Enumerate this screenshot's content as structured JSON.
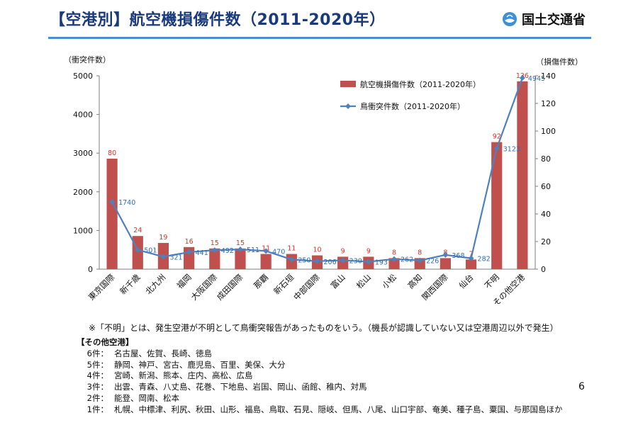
{
  "header": {
    "title": "【空港別】航空機損傷件数（2011-2020年）",
    "logo_text": "国土交通省",
    "logo_icon": "mlit-drop-logo-icon"
  },
  "chart_data": {
    "type": "bar+line",
    "categories": [
      "東京国際",
      "新千歳",
      "北九州",
      "福岡",
      "大阪国際",
      "成田国際",
      "那覇",
      "新石垣",
      "中部国際",
      "富山",
      "松山",
      "小松",
      "高知",
      "関西国際",
      "仙台",
      "不明",
      "その他空港"
    ],
    "series": [
      {
        "name": "航空機損傷件数（2011-2020年）",
        "type": "bar",
        "axis": "right",
        "color": "#c0504d",
        "values": [
          80,
          24,
          19,
          16,
          15,
          15,
          11,
          11,
          10,
          9,
          9,
          8,
          8,
          8,
          7,
          92,
          136
        ]
      },
      {
        "name": "鳥衝突件数（2011-2020年）",
        "type": "line",
        "axis": "left",
        "color": "#4f81bd",
        "values": [
          1740,
          501,
          321,
          441,
          492,
          511,
          470,
          250,
          206,
          230,
          193,
          262,
          226,
          368,
          282,
          3123,
          4945
        ]
      }
    ],
    "y_left": {
      "label": "（衝突件数）",
      "min": 0,
      "max": 5000,
      "ticks": [
        "0",
        "1000",
        "2000",
        "3000",
        "4000",
        "5000"
      ]
    },
    "y_right": {
      "label": "（損傷件数）",
      "min": 0,
      "max": 140,
      "ticks": [
        "0",
        "20",
        "40",
        "60",
        "80",
        "100",
        "120",
        "140"
      ]
    },
    "legend_position": "top-right",
    "grid": false
  },
  "note": "※「不明」とは、発生空港が不明として鳥衝突報告があったものをいう。（機長が認識していない又は空港周辺以外で発生）",
  "others": {
    "heading": "【その他空港】",
    "rows": [
      {
        "label": "6件：",
        "text": "名古屋、佐賀、長崎、徳島"
      },
      {
        "label": "5件：",
        "text": "静岡、神戸、宮古、鹿児島、百里、美保、大分"
      },
      {
        "label": "4件：",
        "text": "宮崎、新潟、熊本、庄内、高松、広島"
      },
      {
        "label": "3件：",
        "text": "出雲、青森、八丈島、花巻、下地島、岩国、岡山、函館、稚内、対馬"
      },
      {
        "label": "2件：",
        "text": "能登、岡南、松本"
      },
      {
        "label": "1件：",
        "text": "札幌、中標津、利尻、秋田、山形、福島、鳥取、石見、隠岐、但馬、八尾、山口宇部、奄美、種子島、粟国、与那国島ほか"
      }
    ]
  },
  "page_number": "6"
}
